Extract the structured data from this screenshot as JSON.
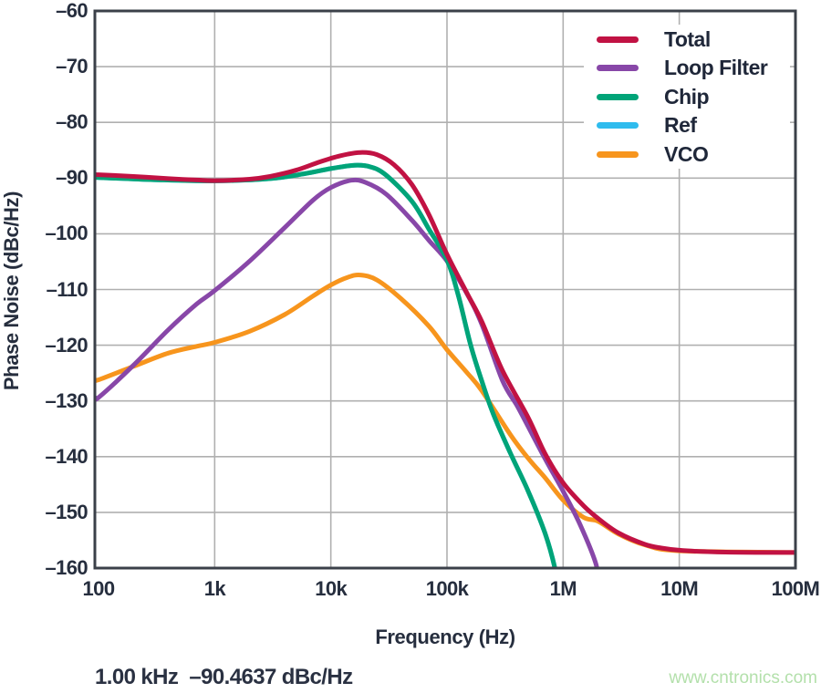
{
  "page": {
    "background": "#ffffff",
    "text_color": "#262e3e"
  },
  "marker_readout": {
    "frequency": "1.00 kHz",
    "value": "-90.4637 dBc/Hz",
    "text": "1.00 kHz  –90.4637 dBc/Hz"
  },
  "watermark": {
    "text": "www.cntronics.com",
    "color": "#b3e0ab"
  },
  "chart_data": {
    "type": "line",
    "title": "",
    "xlabel": "Frequency (Hz)",
    "ylabel": "Phase Noise (dBc/Hz)",
    "x_scale": "log",
    "xlim": [
      93,
      100000000
    ],
    "ylim": [
      -160,
      -60
    ],
    "grid": true,
    "grid_color": "#b0b0b0",
    "frame_color": "#3b4049",
    "legend_position": "top-right",
    "x_ticks": [
      {
        "label": "100",
        "value": 100
      },
      {
        "label": "1k",
        "value": 1000
      },
      {
        "label": "10k",
        "value": 10000
      },
      {
        "label": "100k",
        "value": 100000
      },
      {
        "label": "1M",
        "value": 1000000
      },
      {
        "label": "10M",
        "value": 10000000
      },
      {
        "label": "100M",
        "value": 100000000
      }
    ],
    "y_ticks": [
      {
        "label": "–60",
        "value": -60
      },
      {
        "label": "–70",
        "value": -70
      },
      {
        "label": "–80",
        "value": -80
      },
      {
        "label": "–90",
        "value": -90
      },
      {
        "label": "–100",
        "value": -100
      },
      {
        "label": "–110",
        "value": -110
      },
      {
        "label": "–120",
        "value": -120
      },
      {
        "label": "–130",
        "value": -130
      },
      {
        "label": "–140",
        "value": -140
      },
      {
        "label": "–150",
        "value": -150
      },
      {
        "label": "–160",
        "value": -160
      }
    ],
    "legend": [
      {
        "label": "Total",
        "color": "#c11243"
      },
      {
        "label": "Loop Filter",
        "color": "#8847a8"
      },
      {
        "label": "Chip",
        "color": "#00a478"
      },
      {
        "label": "Ref",
        "color": "#2fbcee"
      },
      {
        "label": "VCO",
        "color": "#f7951d"
      }
    ],
    "series": [
      {
        "name": "Ref",
        "color": "#2fbcee",
        "note": "not visibly distinct in plot; coincides with Chip curve (drawn beneath it)",
        "points": [
          [
            100,
            -89.9
          ],
          [
            300,
            -90.3
          ],
          [
            1000,
            -90.5
          ],
          [
            3000,
            -90.1
          ],
          [
            6000,
            -89.2
          ],
          [
            10000,
            -88.3
          ],
          [
            16000,
            -87.7
          ],
          [
            22000,
            -88.0
          ],
          [
            30000,
            -89.5
          ],
          [
            50000,
            -94.2
          ],
          [
            70000,
            -99.2
          ],
          [
            100000,
            -104.7
          ],
          [
            125000,
            -111.0
          ],
          [
            160000,
            -120.0
          ],
          [
            200000,
            -126.5
          ],
          [
            250000,
            -132.3
          ],
          [
            350000,
            -139.3
          ],
          [
            500000,
            -146.2
          ],
          [
            700000,
            -153.8
          ],
          [
            860000,
            -160.5
          ],
          [
            880000,
            -163
          ]
        ]
      },
      {
        "name": "VCO",
        "color": "#f7951d",
        "points": [
          [
            100,
            -126.2
          ],
          [
            200,
            -123.8
          ],
          [
            400,
            -121.4
          ],
          [
            700,
            -120.2
          ],
          [
            1000,
            -119.5
          ],
          [
            2000,
            -117.5
          ],
          [
            4000,
            -114.5
          ],
          [
            7000,
            -111.2
          ],
          [
            10000,
            -109.2
          ],
          [
            14000,
            -107.8
          ],
          [
            18000,
            -107.4
          ],
          [
            25000,
            -108.3
          ],
          [
            40000,
            -111.6
          ],
          [
            70000,
            -116.6
          ],
          [
            100000,
            -120.8
          ],
          [
            150000,
            -125.0
          ],
          [
            200000,
            -128.2
          ],
          [
            350000,
            -136.0
          ],
          [
            500000,
            -140.3
          ],
          [
            700000,
            -143.8
          ],
          [
            1000000,
            -147.8
          ],
          [
            1500000,
            -150.9
          ],
          [
            2000000,
            -151.6
          ],
          [
            3000000,
            -153.9
          ],
          [
            5000000,
            -155.8
          ],
          [
            10000000,
            -156.9
          ],
          [
            100000000,
            -157.2
          ]
        ]
      },
      {
        "name": "Loop Filter",
        "color": "#8847a8",
        "points": [
          [
            100,
            -129.4
          ],
          [
            200,
            -123.6
          ],
          [
            400,
            -117.2
          ],
          [
            700,
            -112.6
          ],
          [
            1000,
            -110.2
          ],
          [
            2000,
            -104.9
          ],
          [
            4000,
            -98.9
          ],
          [
            7000,
            -94.0
          ],
          [
            10000,
            -91.7
          ],
          [
            15000,
            -90.4
          ],
          [
            20000,
            -90.8
          ],
          [
            30000,
            -92.9
          ],
          [
            50000,
            -97.6
          ],
          [
            70000,
            -101.2
          ],
          [
            100000,
            -104.9
          ],
          [
            150000,
            -110.9
          ],
          [
            200000,
            -116.3
          ],
          [
            300000,
            -126.3
          ],
          [
            400000,
            -130.8
          ],
          [
            500000,
            -134.6
          ],
          [
            700000,
            -140.4
          ],
          [
            1000000,
            -146.2
          ],
          [
            1400000,
            -152.2
          ],
          [
            1900000,
            -159.0
          ],
          [
            2050000,
            -163
          ]
        ]
      },
      {
        "name": "Chip",
        "color": "#00a478",
        "points": [
          [
            100,
            -89.9
          ],
          [
            300,
            -90.3
          ],
          [
            1000,
            -90.5
          ],
          [
            3000,
            -90.1
          ],
          [
            6000,
            -89.2
          ],
          [
            10000,
            -88.3
          ],
          [
            16000,
            -87.7
          ],
          [
            22000,
            -88.0
          ],
          [
            30000,
            -89.5
          ],
          [
            50000,
            -94.2
          ],
          [
            70000,
            -99.2
          ],
          [
            100000,
            -104.7
          ],
          [
            125000,
            -111.0
          ],
          [
            160000,
            -120.0
          ],
          [
            200000,
            -126.5
          ],
          [
            250000,
            -132.3
          ],
          [
            350000,
            -139.3
          ],
          [
            500000,
            -146.2
          ],
          [
            700000,
            -153.8
          ],
          [
            860000,
            -160.5
          ],
          [
            880000,
            -163
          ]
        ]
      },
      {
        "name": "Total",
        "color": "#c11243",
        "points": [
          [
            100,
            -89.4
          ],
          [
            200,
            -89.7
          ],
          [
            400,
            -90.1
          ],
          [
            700,
            -90.35
          ],
          [
            1000,
            -90.46
          ],
          [
            2000,
            -90.2
          ],
          [
            3000,
            -89.7
          ],
          [
            5000,
            -88.6
          ],
          [
            8000,
            -87.1
          ],
          [
            12000,
            -86.0
          ],
          [
            18000,
            -85.4
          ],
          [
            25000,
            -85.8
          ],
          [
            35000,
            -87.6
          ],
          [
            50000,
            -91.2
          ],
          [
            70000,
            -96.6
          ],
          [
            100000,
            -103.7
          ],
          [
            150000,
            -110.8
          ],
          [
            200000,
            -115.8
          ],
          [
            300000,
            -124.5
          ],
          [
            500000,
            -133.0
          ],
          [
            700000,
            -139.5
          ],
          [
            1000000,
            -144.7
          ],
          [
            1500000,
            -148.8
          ],
          [
            2000000,
            -151.1
          ],
          [
            3000000,
            -153.7
          ],
          [
            5000000,
            -155.7
          ],
          [
            7000000,
            -156.4
          ],
          [
            10000000,
            -156.8
          ],
          [
            20000000,
            -157.1
          ],
          [
            50000000,
            -157.2
          ],
          [
            100000000,
            -157.2
          ]
        ]
      }
    ]
  }
}
